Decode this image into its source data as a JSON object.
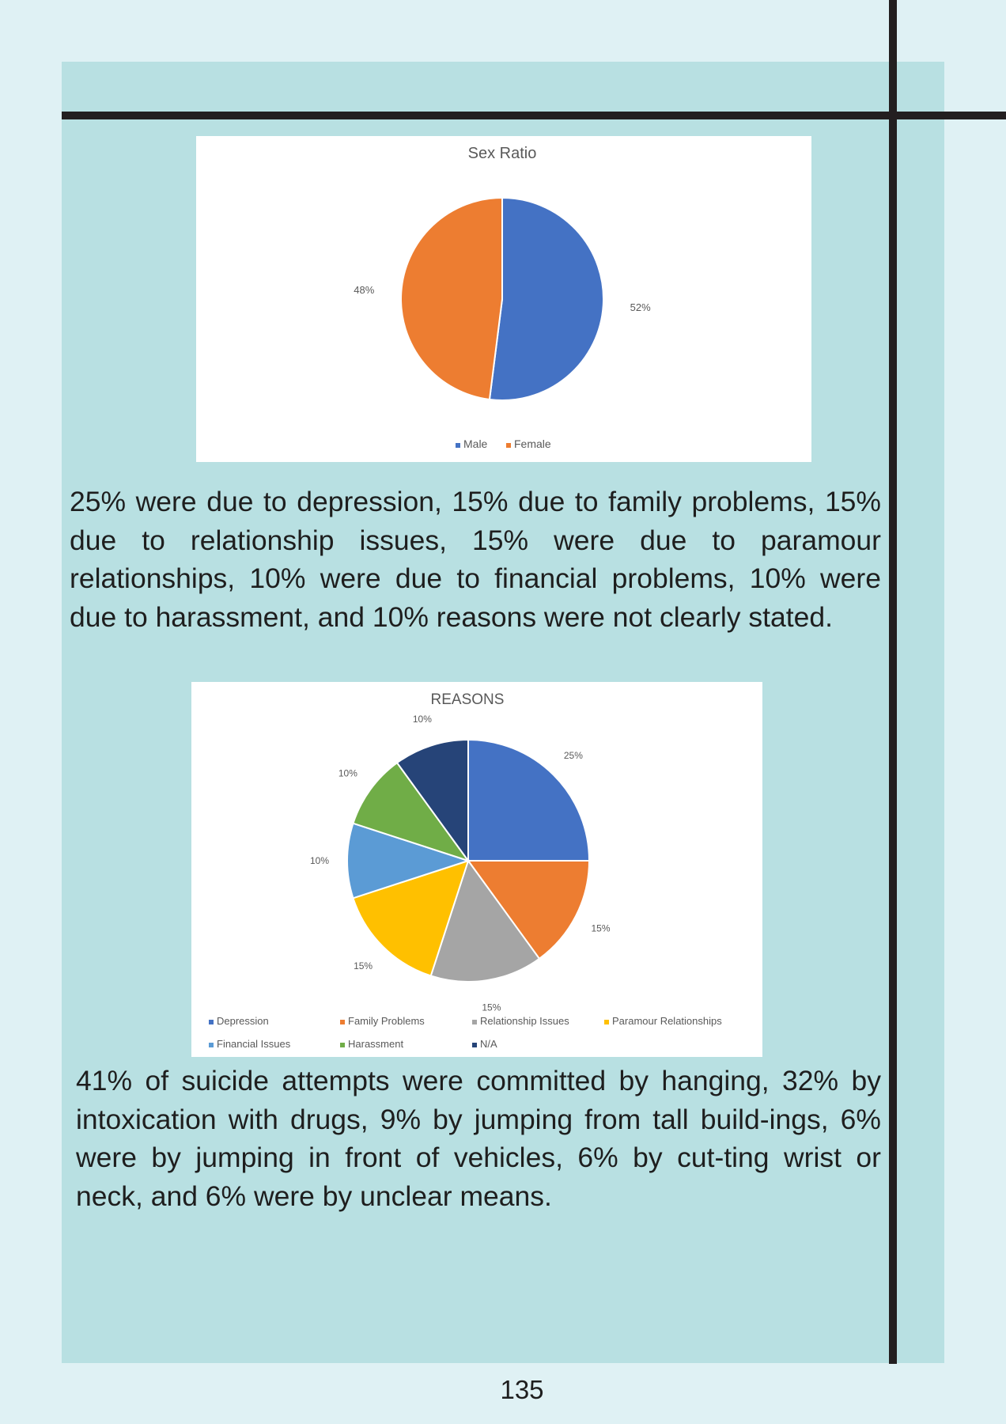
{
  "page_number": "135",
  "paragraphs": {
    "reasons_summary": "25% were due to depression, 15% due to family problems, 15% due to relationship issues, 15% were due to paramour relationships, 10% were due to financial problems, 10% were due to harassment, and 10% reasons were not clearly stated.",
    "methods_summary": "41% of suicide attempts were committed by hanging, 32% by intoxication with drugs, 9% by jumping from tall build-ings, 6% were by jumping in front of vehicles, 6% by cut-ting wrist or neck, and 6% were by unclear means."
  },
  "chart_data": [
    {
      "type": "pie",
      "title": "Sex Ratio",
      "categories": [
        "Male",
        "Female"
      ],
      "values": [
        52,
        48
      ],
      "value_labels": [
        "52%",
        "48%"
      ],
      "colors": [
        "#4472c4",
        "#ed7d31"
      ],
      "legend": "bottom",
      "start_angle": "12 o'clock, clockwise"
    },
    {
      "type": "pie",
      "title": "REASONS",
      "categories": [
        "Depression",
        "Family Problems",
        "Relationship Issues",
        "Paramour Relationships",
        "Financial Issues",
        "Harassment",
        "N/A"
      ],
      "values": [
        25,
        15,
        15,
        15,
        10,
        10,
        10
      ],
      "value_labels": [
        "25%",
        "15%",
        "15%",
        "15%",
        "10%",
        "10%",
        "10%"
      ],
      "colors": [
        "#4472c4",
        "#ed7d31",
        "#a5a5a5",
        "#ffc000",
        "#5b9bd5",
        "#70ad47",
        "#264478"
      ],
      "legend": "bottom",
      "start_angle": "12 o'clock, clockwise"
    }
  ]
}
